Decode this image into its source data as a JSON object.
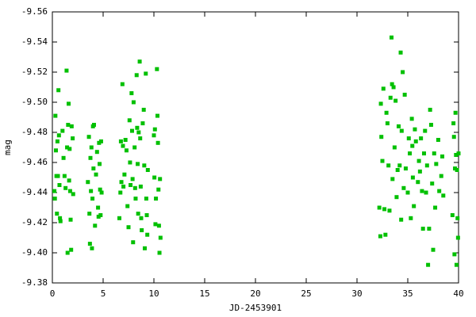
{
  "chart_data": {
    "type": "scatter",
    "xlabel": "JD-2453901",
    "ylabel": "mag",
    "color": "#00c000",
    "xlim": [
      0,
      40
    ],
    "xticks": [
      0,
      5,
      10,
      15,
      20,
      25,
      30,
      35,
      40
    ],
    "ylim": [
      -9.38,
      -9.56
    ],
    "yticks": [
      -9.56,
      -9.54,
      -9.52,
      {
        "value": -9.5,
        "label": "-9.50"
      },
      -9.48,
      -9.46,
      -9.44,
      -9.42,
      {
        "value": -9.4,
        "label": "-9.40"
      },
      -9.38
    ],
    "x": [
      0.2,
      0.25,
      0.3,
      0.35,
      0.4,
      0.45,
      0.5,
      0.55,
      0.6,
      0.65,
      0.7,
      0.75,
      0.8,
      1.0,
      1.1,
      1.2,
      1.3,
      1.4,
      1.45,
      1.5,
      1.55,
      1.6,
      1.65,
      1.7,
      1.75,
      1.8,
      1.85,
      1.9,
      2.0,
      2.05,
      3.5,
      3.6,
      3.65,
      3.7,
      3.75,
      3.8,
      3.85,
      3.9,
      3.95,
      4.0,
      4.05,
      4.1,
      4.2,
      4.3,
      4.4,
      4.5,
      4.55,
      4.6,
      4.65,
      4.7,
      4.75,
      4.8,
      4.85,
      6.6,
      6.7,
      6.75,
      6.8,
      6.9,
      6.95,
      7.0,
      7.1,
      7.2,
      7.3,
      7.4,
      7.5,
      7.6,
      7.65,
      7.7,
      7.8,
      7.85,
      7.9,
      7.95,
      8.0,
      8.1,
      8.15,
      8.2,
      8.3,
      8.35,
      8.4,
      8.45,
      8.5,
      8.6,
      8.65,
      8.7,
      8.75,
      8.8,
      8.9,
      9.0,
      9.05,
      9.1,
      9.2,
      9.25,
      9.3,
      9.35,
      9.4,
      10.0,
      10.05,
      10.1,
      10.15,
      10.2,
      10.3,
      10.35,
      10.4,
      10.45,
      10.5,
      10.55,
      10.6,
      10.65,
      32.2,
      32.3,
      32.35,
      32.4,
      32.5,
      32.6,
      32.7,
      32.8,
      32.9,
      33.0,
      33.1,
      33.2,
      33.3,
      33.4,
      33.45,
      33.5,
      33.6,
      33.7,
      33.8,
      33.9,
      34.0,
      34.1,
      34.2,
      34.3,
      34.35,
      34.4,
      34.5,
      34.6,
      34.7,
      34.8,
      35.0,
      35.1,
      35.2,
      35.3,
      35.4,
      35.45,
      35.5,
      35.6,
      35.7,
      35.8,
      36.0,
      36.1,
      36.2,
      36.3,
      36.4,
      36.5,
      36.6,
      36.7,
      36.8,
      36.9,
      37.0,
      37.1,
      37.2,
      37.3,
      37.4,
      37.5,
      37.6,
      37.7,
      37.8,
      38.0,
      38.1,
      38.3,
      38.4,
      38.5,
      39.4,
      39.5,
      39.55,
      39.6,
      39.65,
      39.7,
      39.75,
      39.8,
      39.85,
      39.9,
      39.95,
      40.0
    ],
    "values": [
      -9.441,
      -9.436,
      -9.491,
      -9.468,
      -9.451,
      -9.426,
      -9.474,
      -9.451,
      -9.508,
      -9.478,
      -9.445,
      -9.423,
      -9.421,
      -9.481,
      -9.463,
      -9.451,
      -9.443,
      -9.521,
      -9.47,
      -9.4,
      -9.485,
      -9.499,
      -9.448,
      -9.469,
      -9.441,
      -9.422,
      -9.402,
      -9.484,
      -9.476,
      -9.439,
      -9.447,
      -9.477,
      -9.426,
      -9.406,
      -9.463,
      -9.441,
      -9.47,
      -9.403,
      -9.436,
      -9.484,
      -9.456,
      -9.485,
      -9.418,
      -9.452,
      -9.467,
      -9.43,
      -9.424,
      -9.473,
      -9.459,
      -9.442,
      -9.425,
      -9.474,
      -9.44,
      -9.423,
      -9.44,
      -9.474,
      -9.447,
      -9.512,
      -9.471,
      -9.444,
      -9.452,
      -9.475,
      -9.468,
      -9.431,
      -9.417,
      -9.488,
      -9.46,
      -9.445,
      -9.506,
      -9.481,
      -9.449,
      -9.407,
      -9.5,
      -9.47,
      -9.443,
      -9.436,
      -9.518,
      -9.483,
      -9.459,
      -9.426,
      -9.48,
      -9.527,
      -9.476,
      -9.444,
      -9.423,
      -9.415,
      -9.486,
      -9.495,
      -9.458,
      -9.403,
      -9.519,
      -9.436,
      -9.425,
      -9.412,
      -9.455,
      -9.478,
      -9.45,
      -9.482,
      -9.419,
      -9.436,
      -9.522,
      -9.491,
      -9.473,
      -9.442,
      -9.418,
      -9.4,
      -9.449,
      -9.41,
      -9.43,
      -9.411,
      -9.499,
      -9.477,
      -9.461,
      -9.509,
      -9.429,
      -9.412,
      -9.493,
      -9.486,
      -9.458,
      -9.428,
      -9.503,
      -9.543,
      -9.512,
      -9.449,
      -9.51,
      -9.47,
      -9.501,
      -9.437,
      -9.455,
      -9.484,
      -9.458,
      -9.533,
      -9.422,
      -9.481,
      -9.52,
      -9.443,
      -9.505,
      -9.456,
      -9.44,
      -9.476,
      -9.466,
      -9.423,
      -9.489,
      -9.471,
      -9.45,
      -9.431,
      -9.482,
      -9.474,
      -9.447,
      -9.461,
      -9.454,
      -9.476,
      -9.441,
      -9.416,
      -9.466,
      -9.481,
      -9.44,
      -9.458,
      -9.392,
      -9.416,
      -9.495,
      -9.485,
      -9.446,
      -9.402,
      -9.466,
      -9.43,
      -9.459,
      -9.475,
      -9.441,
      -9.451,
      -9.464,
      -9.438,
      -9.425,
      -9.486,
      -9.477,
      -9.399,
      -9.456,
      -9.493,
      -9.465,
      -9.392,
      -9.455,
      -9.423,
      -9.41,
      -9.466
    ]
  }
}
